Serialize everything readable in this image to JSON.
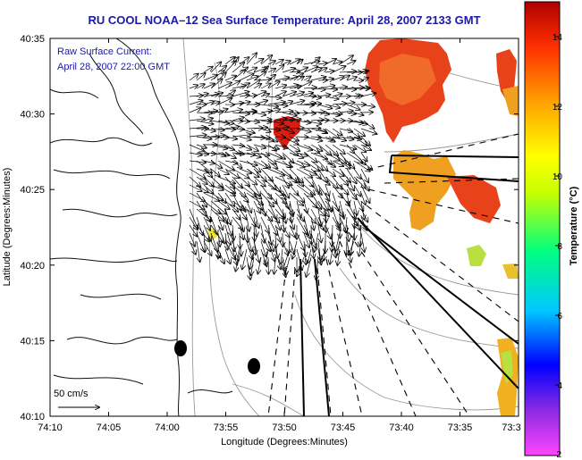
{
  "header": {
    "title": "RU COOL  NOAA–12  Sea Surface Temperature:  April 28, 2007 2133 GMT"
  },
  "annotations": {
    "current_label": "Raw Surface Current:",
    "current_time": "April 28, 2007 22:00 GMT",
    "scale_label": "50 cm/s"
  },
  "axes": {
    "xlabel": "Longitude (Degrees:Minutes)",
    "ylabel": "Latitude (Degrees:Minutes)",
    "x_ticks": [
      "74:10",
      "74:05",
      "74:00",
      "73:55",
      "73:50",
      "73:45",
      "73:40",
      "73:35",
      "73:3"
    ],
    "y_ticks": [
      "40:35",
      "40:30",
      "40:25",
      "40:20",
      "40:15",
      "40:10"
    ]
  },
  "colorbar": {
    "label": "Temperature (°C)",
    "ticks": [
      "14",
      "12",
      "10",
      "8",
      "6",
      "4",
      "2"
    ],
    "range": [
      2,
      15
    ]
  },
  "colors": {
    "title": "#1a1aa6",
    "sst_warm": "#e8421a",
    "sst_hot": "#d81e10",
    "sst_mid": "#f0a020",
    "sst_yellow": "#e8e830",
    "coast": "#111111",
    "bathy": "#999999"
  },
  "map_data": {
    "lon_range": [
      "74:10 W",
      "73:30 W"
    ],
    "lat_range": [
      "40:10 N",
      "40:35 N"
    ],
    "sst_patches": [
      {
        "name": "northeast warm plume",
        "temp_c": 13
      },
      {
        "name": "central warm spot",
        "temp_c": 14
      },
      {
        "name": "east-central patch",
        "temp_c": 11.5
      },
      {
        "name": "southeast edge patch",
        "temp_c": 11
      }
    ],
    "markers": [
      "buoy-1",
      "buoy-2"
    ]
  }
}
